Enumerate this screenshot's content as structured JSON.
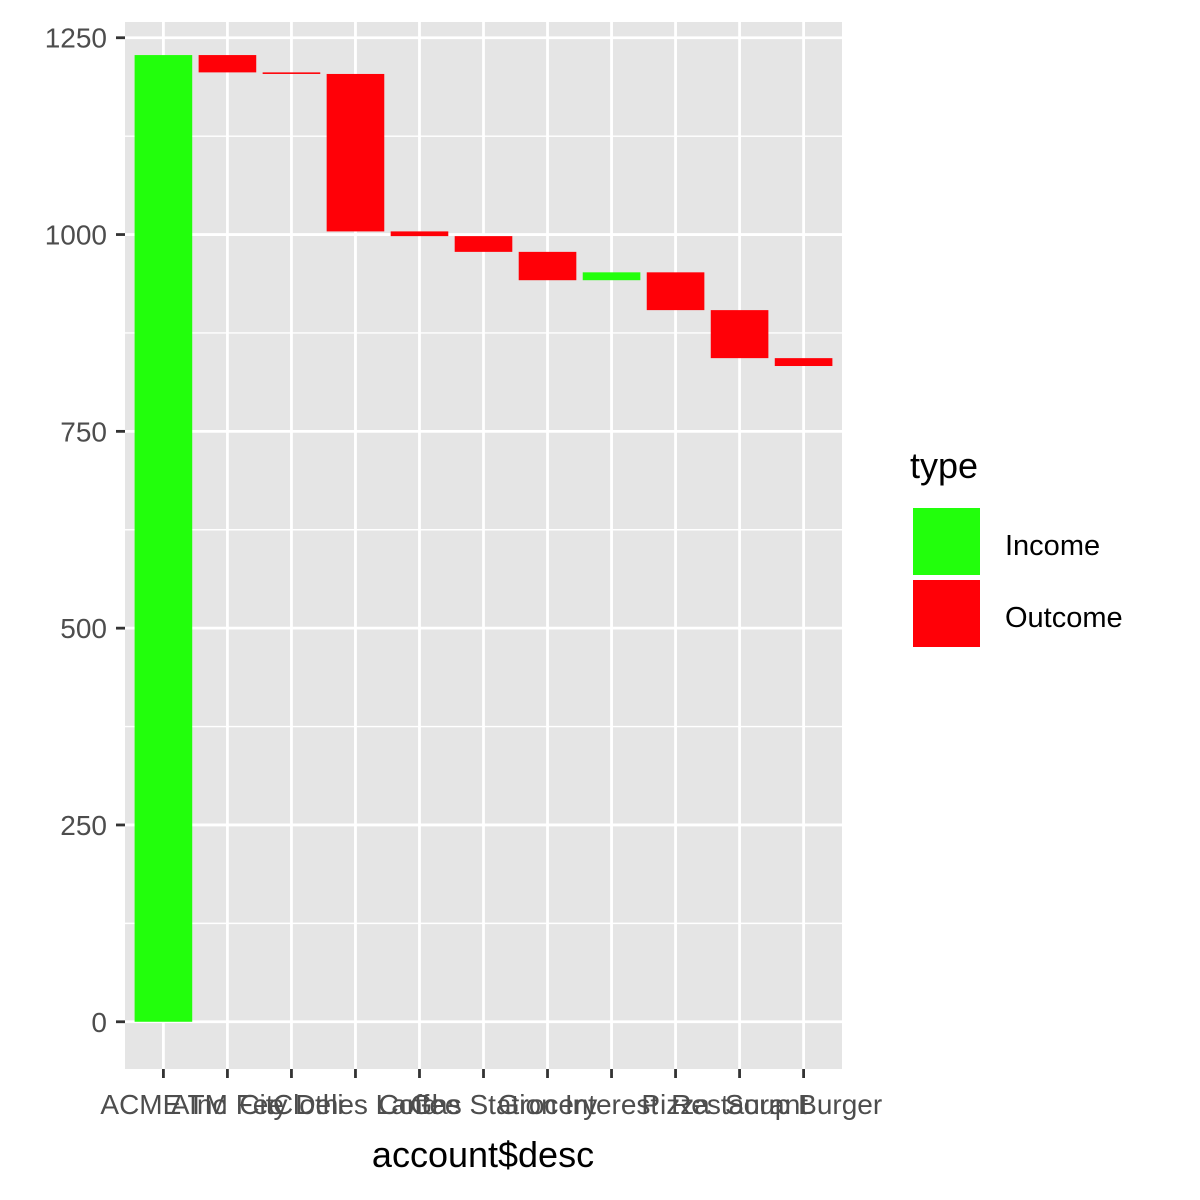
{
  "chart_data": {
    "type": "bar",
    "subtype": "waterfall",
    "xlabel": "account$desc",
    "ylabel": "",
    "ylim": [
      -60,
      1270
    ],
    "yticks": [
      0,
      250,
      500,
      750,
      1000,
      1250
    ],
    "categories": [
      "ACME Inc",
      "ATM Fee",
      "City Deli",
      "Clothes Land",
      "Coffee",
      "Gas Station",
      "Grocery",
      "Interest",
      "Pizza",
      "Restaurant",
      "Soup Burger"
    ],
    "tick_labels": [
      "ACME Inc",
      "ATM Fee",
      "City Deli",
      "Clothes Land",
      "Coffee",
      "Gas Station",
      "Grocery",
      "Interest",
      "Pizza",
      "Restaurant",
      "Soup Burger"
    ],
    "bars": [
      {
        "category": "ACME Inc",
        "start": 0,
        "end": 1228,
        "type": "Income"
      },
      {
        "category": "ATM Fee",
        "start": 1228,
        "end": 1206,
        "type": "Outcome"
      },
      {
        "category": "City Deli",
        "start": 1206,
        "end": 1204,
        "type": "Outcome"
      },
      {
        "category": "Clothes Land",
        "start": 1204,
        "end": 1004,
        "type": "Outcome"
      },
      {
        "category": "Coffee",
        "start": 1004,
        "end": 998,
        "type": "Outcome"
      },
      {
        "category": "Gas Station",
        "start": 998,
        "end": 978,
        "type": "Outcome"
      },
      {
        "category": "Grocery",
        "start": 978,
        "end": 942,
        "type": "Outcome"
      },
      {
        "category": "Interest",
        "start": 942,
        "end": 952,
        "type": "Income"
      },
      {
        "category": "Pizza",
        "start": 952,
        "end": 904,
        "type": "Outcome"
      },
      {
        "category": "Restaurant",
        "start": 904,
        "end": 843,
        "type": "Outcome"
      },
      {
        "category": "Soup Burger",
        "start": 843,
        "end": 833,
        "type": "Outcome"
      }
    ],
    "legend": {
      "title": "type",
      "position": "right",
      "entries": [
        {
          "label": "Income",
          "color": "#22ff0c"
        },
        {
          "label": "Outcome",
          "color": "#ff0007"
        }
      ]
    },
    "colors": {
      "Income": "#22ff0c",
      "Outcome": "#ff0007",
      "panel_background": "#e5e5e5",
      "grid": "#ffffff"
    },
    "grid": true
  }
}
